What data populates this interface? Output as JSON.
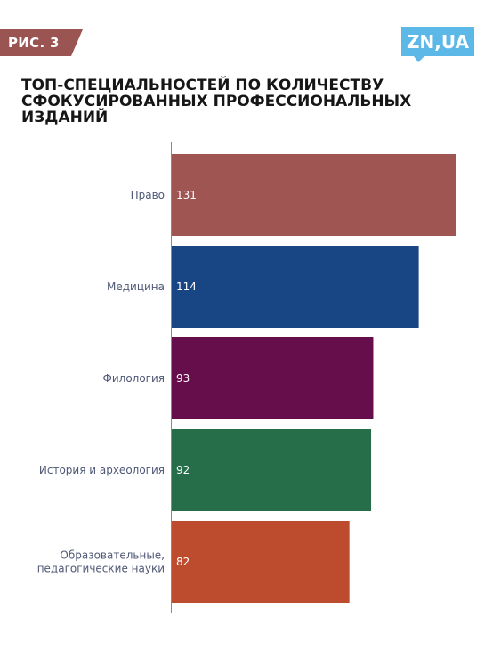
{
  "figure_label": "РИС. 3",
  "logo": {
    "text": "ZN,UA",
    "color": "#5cb8e6"
  },
  "chart_data": {
    "type": "bar",
    "orientation": "horizontal",
    "title": "ТОП-СПЕЦИАЛЬНОСТЕЙ ПО КОЛИЧЕСТВУ\nСФОКУСИРОВАННЫХ ПРОФЕССИОНАЛЬНЫХ\nИЗДАНИЙ",
    "categories": [
      "Право",
      "Медицина",
      "Филология",
      "История и археология",
      "Образовательные,\nпедагогические науки"
    ],
    "values": [
      131,
      114,
      93,
      92,
      82
    ],
    "bar_colors": [
      "#9f5552",
      "#184684",
      "#660e4b",
      "#266d4a",
      "#bd4c2f"
    ],
    "xlim": [
      0,
      131
    ],
    "grid": false,
    "value_labels": "inside-start"
  }
}
